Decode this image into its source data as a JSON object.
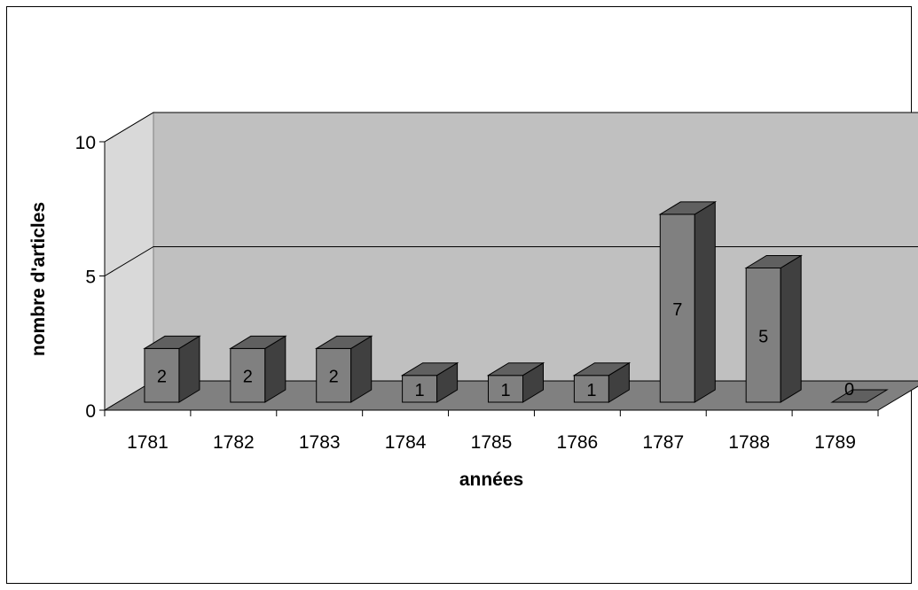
{
  "chart_data": {
    "type": "bar",
    "categories": [
      "1781",
      "1782",
      "1783",
      "1784",
      "1785",
      "1786",
      "1787",
      "1788",
      "1789"
    ],
    "values": [
      2,
      2,
      2,
      1,
      1,
      1,
      7,
      5,
      0
    ],
    "data_labels": [
      "2",
      "2",
      "2",
      "1",
      "1",
      "1",
      "7",
      "5",
      "0"
    ],
    "xlabel": "années",
    "ylabel": "nombre d'articles",
    "ylim": [
      0,
      10
    ],
    "yticks": [
      "0",
      "5",
      "10"
    ],
    "grid": true,
    "legend": "none",
    "colors": {
      "bar_front": "#808080",
      "bar_side": "#404040",
      "bar_top": "#606060",
      "back_wall": "#c0c0c0",
      "floor": "#808080",
      "left_wall": "#d9d9d9"
    }
  }
}
